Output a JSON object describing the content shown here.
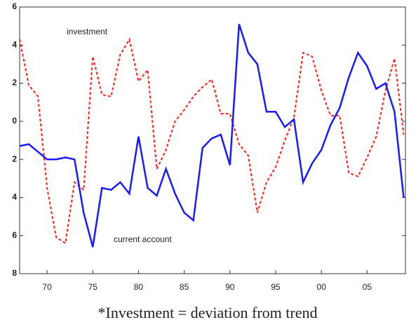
{
  "chart_data": {
    "type": "line",
    "caption": "*Investment = deviation from trend",
    "annotations": [],
    "x": [
      1967,
      1968,
      1969,
      1970,
      1971,
      1972,
      1973,
      1974,
      1975,
      1976,
      1977,
      1978,
      1979,
      1980,
      1981,
      1982,
      1983,
      1984,
      1985,
      1986,
      1987,
      1988,
      1989,
      1990,
      1991,
      1992,
      1993,
      1994,
      1995,
      1996,
      1997,
      1998,
      1999,
      2000,
      2001,
      2002,
      2003,
      2004,
      2005,
      2006,
      2007,
      2008,
      2009
    ],
    "series": [
      {
        "name": "investment",
        "color": "#ff2020",
        "dash": true,
        "values": [
          4.3,
          1.9,
          1.3,
          -3.5,
          -6.1,
          -6.4,
          -3.2,
          -3.6,
          3.4,
          1.4,
          1.3,
          3.5,
          4.3,
          2.1,
          2.7,
          -2.5,
          -1.5,
          0,
          0.6,
          1.3,
          1.8,
          2.2,
          0.4,
          0.4,
          -1.2,
          -1.8,
          -4.8,
          -3.2,
          -2.4,
          -1.0,
          0.2,
          3.6,
          3.4,
          1.6,
          0.3,
          0.3,
          -2.7,
          -2.9,
          -1.9,
          -0.8,
          1.6,
          3.3,
          -0.7
        ]
      },
      {
        "name": "current account",
        "color": "#1a1aff",
        "dash": false,
        "values": [
          -1.3,
          -1.2,
          -1.6,
          -2.0,
          -2.0,
          -1.9,
          -2.0,
          -4.8,
          -6.6,
          -3.5,
          -3.6,
          -3.2,
          -3.8,
          -0.8,
          -3.5,
          -3.9,
          -2.5,
          -3.8,
          -4.8,
          -5.2,
          -1.4,
          -0.9,
          -0.7,
          -2.3,
          5.1,
          3.6,
          3.0,
          0.5,
          0.5,
          -0.3,
          0.1,
          -3.2,
          -2.2,
          -1.5,
          -0.2,
          0.7,
          2.3,
          3.6,
          2.9,
          1.7,
          2.0,
          0.5,
          -4.0
        ]
      }
    ],
    "xlim": [
      1967,
      2009.2
    ],
    "xticks": [
      {
        "value": 1970,
        "label": "70"
      },
      {
        "value": 1975,
        "label": "75"
      },
      {
        "value": 1980,
        "label": "80"
      },
      {
        "value": 1985,
        "label": "85"
      },
      {
        "value": 1990,
        "label": "90"
      },
      {
        "value": 1995,
        "label": "95"
      },
      {
        "value": 2000,
        "label": "00"
      },
      {
        "value": 2005,
        "label": "05"
      }
    ],
    "ylim": [
      -8,
      6
    ],
    "yticks": [
      {
        "value": -8,
        "label": "8"
      },
      {
        "value": -6,
        "label": "6"
      },
      {
        "value": -4,
        "label": "4"
      },
      {
        "value": -2,
        "label": "2"
      },
      0,
      2,
      4,
      6
    ]
  }
}
